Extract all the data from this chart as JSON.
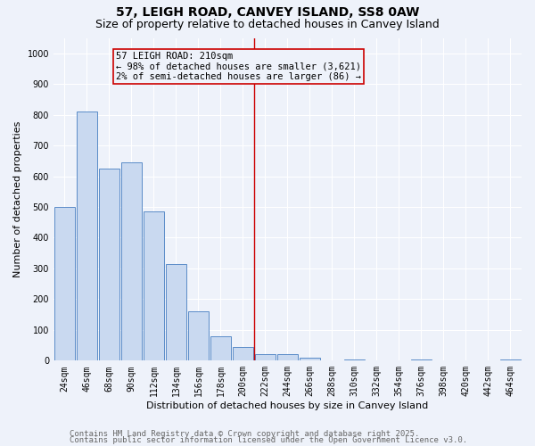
{
  "title": "57, LEIGH ROAD, CANVEY ISLAND, SS8 0AW",
  "subtitle": "Size of property relative to detached houses in Canvey Island",
  "xlabel": "Distribution of detached houses by size in Canvey Island",
  "ylabel": "Number of detached properties",
  "bar_labels": [
    "24sqm",
    "46sqm",
    "68sqm",
    "90sqm",
    "112sqm",
    "134sqm",
    "156sqm",
    "178sqm",
    "200sqm",
    "222sqm",
    "244sqm",
    "266sqm",
    "288sqm",
    "310sqm",
    "332sqm",
    "354sqm",
    "376sqm",
    "398sqm",
    "420sqm",
    "442sqm",
    "464sqm"
  ],
  "bar_values": [
    500,
    810,
    625,
    645,
    485,
    315,
    160,
    80,
    45,
    22,
    20,
    10,
    0,
    5,
    0,
    0,
    4,
    0,
    0,
    0,
    4
  ],
  "bar_color": "#c9d9f0",
  "bar_edge_color": "#5b8cc8",
  "vline_index": 8.5,
  "vline_color": "#cc0000",
  "annotation_title": "57 LEIGH ROAD: 210sqm",
  "annotation_line1": "← 98% of detached houses are smaller (3,621)",
  "annotation_line2": "2% of semi-detached houses are larger (86) →",
  "annotation_box_color": "#cc0000",
  "ylim": [
    0,
    1050
  ],
  "yticks": [
    0,
    100,
    200,
    300,
    400,
    500,
    600,
    700,
    800,
    900,
    1000
  ],
  "footer1": "Contains HM Land Registry data © Crown copyright and database right 2025.",
  "footer2": "Contains public sector information licensed under the Open Government Licence v3.0.",
  "background_color": "#eef2fa",
  "grid_color": "#ffffff",
  "title_fontsize": 10,
  "subtitle_fontsize": 9,
  "axis_label_fontsize": 8,
  "tick_fontsize": 7,
  "footer_fontsize": 6.5,
  "annotation_fontsize": 7.5
}
